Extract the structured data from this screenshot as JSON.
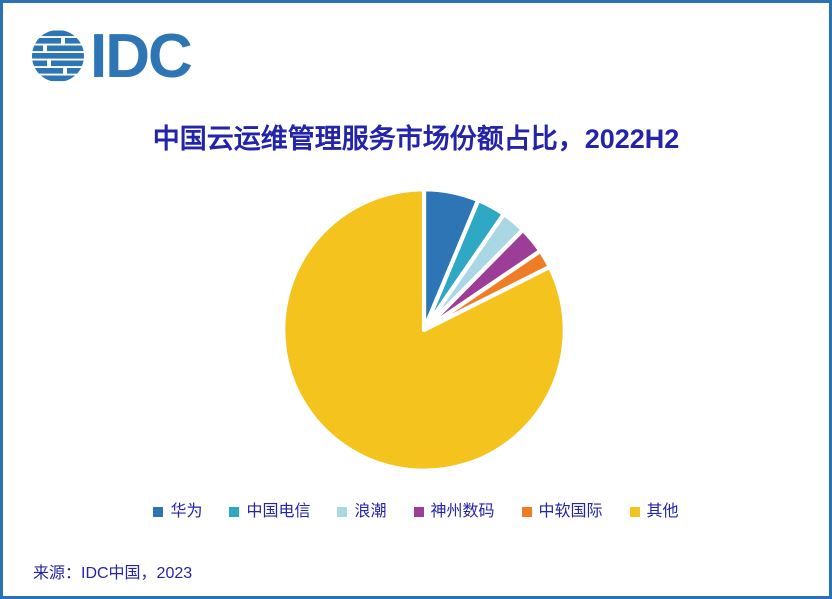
{
  "frame": {
    "background_color": "#ffffff",
    "border_color": "#2b73b0",
    "text_color": "#2424aa"
  },
  "logo": {
    "text": "IDC",
    "color": "#2e75b6"
  },
  "title": {
    "text": "中国云运维管理服务市场份额占比，2022H2"
  },
  "source": {
    "text": "来源：IDC中国，2023"
  },
  "chart_data": {
    "type": "pie",
    "title": "中国云运维管理服务市场份额占比，2022H2",
    "categories": [
      "华为",
      "中国电信",
      "浪潮",
      "神州数码",
      "中软国际",
      "其他"
    ],
    "values": [
      6.3,
      3.3,
      2.8,
      3.1,
      2.1,
      82.4
    ],
    "unit": "percent",
    "colors": [
      "#2e75b6",
      "#2fa8c4",
      "#a9d8e4",
      "#9c3d97",
      "#ef7d26",
      "#f4c31d"
    ],
    "start_angle_deg": 0,
    "direction": "clockwise",
    "slice_border_color": "#ffffff",
    "data_labels": false,
    "legend_position": "bottom"
  }
}
